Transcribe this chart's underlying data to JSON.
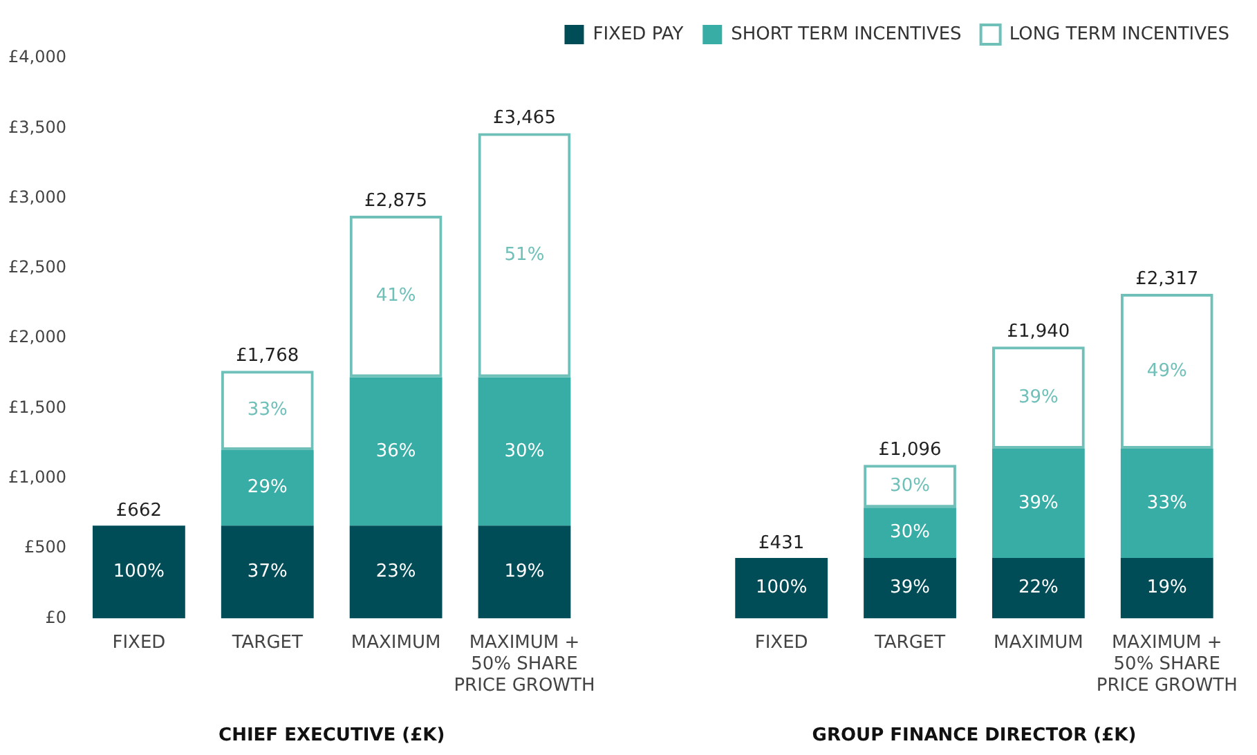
{
  "chart_data": {
    "type": "bar",
    "stacked": true,
    "categories": [
      "FIXED",
      "TARGET",
      "MAXIMUM",
      "MAXIMUM + 50% SHARE PRICE GROWTH",
      null,
      "FIXED",
      "TARGET",
      "MAXIMUM",
      "MAXIMUM + 50% SHARE PRICE GROWTH"
    ],
    "ylim": [
      0,
      4000
    ],
    "yticks": [
      {
        "value": 0,
        "label": "£0"
      },
      {
        "value": 500,
        "label": "£500"
      },
      {
        "value": 1000,
        "label": "£1,000"
      },
      {
        "value": 1500,
        "label": "£1,500"
      },
      {
        "value": 2000,
        "label": "£2,000"
      },
      {
        "value": 2500,
        "label": "£2,500"
      },
      {
        "value": 3000,
        "label": "£3,000"
      },
      {
        "value": 3500,
        "label": "£3,500"
      },
      {
        "value": 4000,
        "label": "£4,000"
      }
    ],
    "grid": false,
    "legend": "top right",
    "series": [
      {
        "name": "FIXED PAY",
        "color": "#004d57",
        "values": [
          662,
          662,
          662,
          662,
          null,
          431,
          431,
          431,
          431
        ]
      },
      {
        "name": "SHORT TERM INCENTIVES",
        "color": "#38ada5",
        "values": [
          null,
          540,
          1060,
          1060,
          null,
          null,
          360,
          780,
          780
        ]
      },
      {
        "name": "LONG TERM INCENTIVES",
        "color": "#6fc0b9",
        "values": [
          null,
          566,
          1153,
          1743,
          null,
          null,
          305,
          729,
          1106
        ]
      }
    ],
    "totals": [
      "£662",
      "£1,768",
      "£2,875",
      "£3,465",
      null,
      "£431",
      "£1,096",
      "£1,940",
      "£2,317"
    ],
    "annotations": [
      "100%",
      "37%",
      "29%",
      "33%",
      "23%",
      "36%",
      "41%",
      "19%",
      "30%",
      "51%",
      "100%",
      "39%",
      "30%",
      "30%",
      "22%",
      "39%",
      "39%",
      "19%",
      "33%",
      "49%",
      "CHIEF EXECUTIVE (£K)",
      "GROUP FINANCE DIRECTOR (£K)"
    ]
  }
}
